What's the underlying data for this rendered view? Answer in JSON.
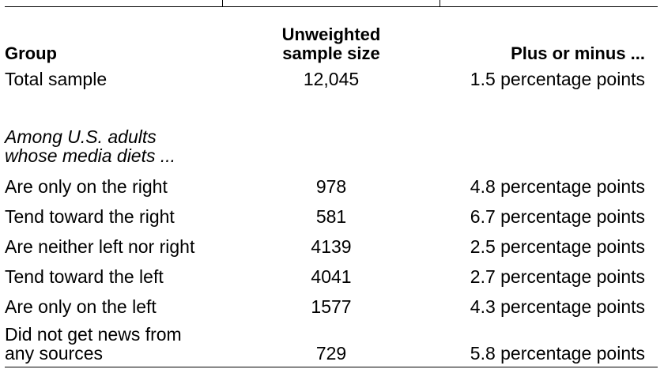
{
  "header": {
    "group": "Group",
    "sample_line1": "Unweighted",
    "sample_line2": "sample size",
    "margin": "Plus or minus ..."
  },
  "total": {
    "label": "Total sample",
    "sample": "12,045",
    "margin": "1.5 percentage points"
  },
  "subheading": {
    "line1": "Among U.S. adults",
    "line2": "whose media diets ..."
  },
  "rows": [
    {
      "label": "Are only on the right",
      "sample": "978",
      "margin": "4.8 percentage points"
    },
    {
      "label": "Tend toward the right",
      "sample": "581",
      "margin": "6.7 percentage points"
    },
    {
      "label": "Are neither left nor right",
      "sample": "4139",
      "margin": "2.5 percentage points"
    },
    {
      "label": "Tend toward the left",
      "sample": "4041",
      "margin": "2.7 percentage points"
    },
    {
      "label": "Are only on the left",
      "sample": "1577",
      "margin": "4.3 percentage points"
    }
  ],
  "last_row": {
    "label_line1": "Did not get news from",
    "label_line2": "any sources",
    "sample": "729",
    "margin": "5.8 percentage points"
  }
}
